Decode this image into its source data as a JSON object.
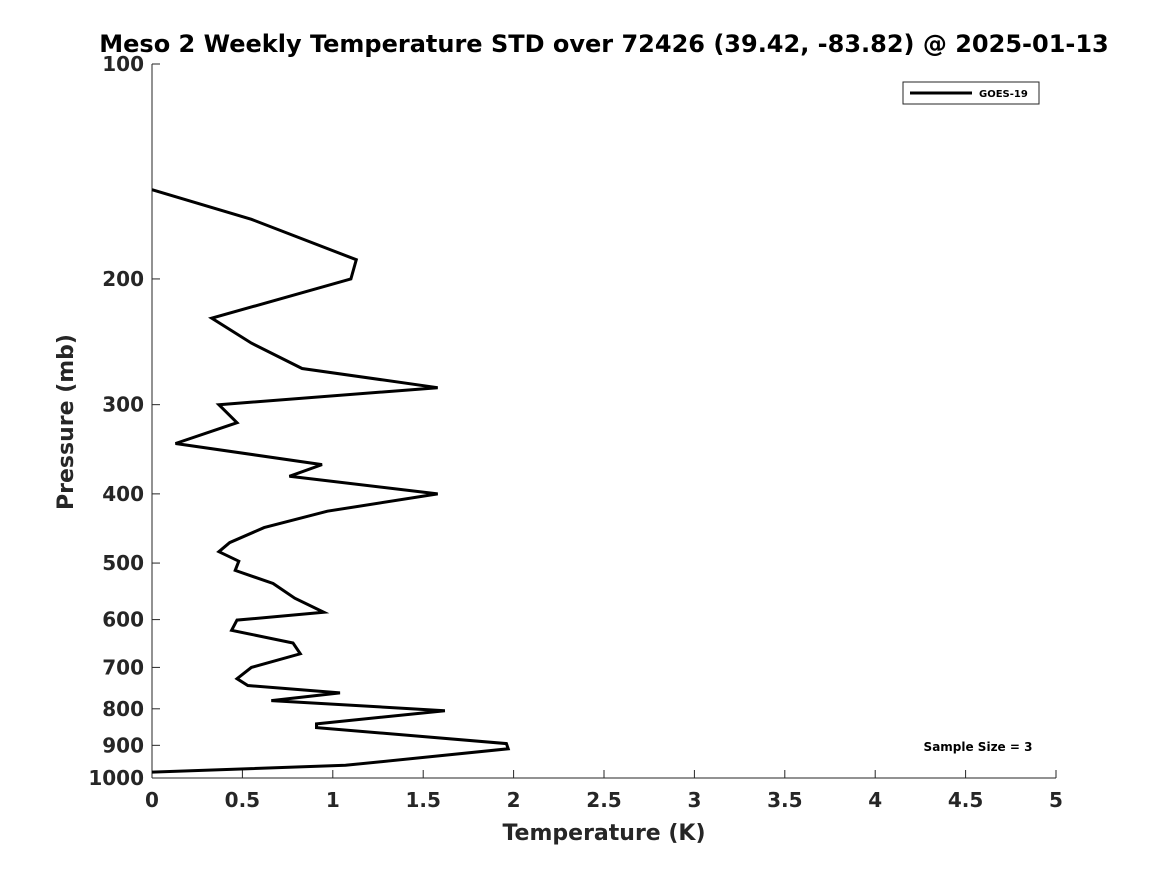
{
  "chart_data": {
    "type": "line",
    "title": "Meso 2 Weekly Temperature STD over 72426 (39.42, -83.82) @ 2025-01-13",
    "xlabel": "Temperature (K)",
    "ylabel": "Pressure (mb)",
    "xlim": [
      0,
      5
    ],
    "ylim": [
      1000,
      100
    ],
    "yscale": "log",
    "y_reversed": true,
    "grid": false,
    "legend_position": "top-right",
    "x_ticks": [
      0,
      0.5,
      1,
      1.5,
      2,
      2.5,
      3,
      3.5,
      4,
      4.5,
      5
    ],
    "x_tick_labels": [
      "0",
      "0.5",
      "1",
      "1.5",
      "2",
      "2.5",
      "3",
      "3.5",
      "4",
      "4.5",
      "5"
    ],
    "y_ticks": [
      100,
      200,
      300,
      400,
      500,
      600,
      700,
      800,
      900,
      1000
    ],
    "y_tick_labels": [
      "100",
      "200",
      "300",
      "400",
      "500",
      "600",
      "700",
      "800",
      "900",
      "1000"
    ],
    "annotation": "Sample Size = 3",
    "series": [
      {
        "name": "GOES-19",
        "color": "#000000",
        "points": [
          {
            "x": 0.0,
            "y": 150
          },
          {
            "x": 0.55,
            "y": 165
          },
          {
            "x": 1.13,
            "y": 188
          },
          {
            "x": 1.1,
            "y": 200
          },
          {
            "x": 0.33,
            "y": 227
          },
          {
            "x": 0.55,
            "y": 246
          },
          {
            "x": 0.83,
            "y": 267
          },
          {
            "x": 1.58,
            "y": 284
          },
          {
            "x": 0.37,
            "y": 300
          },
          {
            "x": 0.47,
            "y": 318
          },
          {
            "x": 0.13,
            "y": 340
          },
          {
            "x": 0.94,
            "y": 364
          },
          {
            "x": 0.76,
            "y": 378
          },
          {
            "x": 1.58,
            "y": 400
          },
          {
            "x": 0.97,
            "y": 423
          },
          {
            "x": 0.62,
            "y": 446
          },
          {
            "x": 0.43,
            "y": 468
          },
          {
            "x": 0.37,
            "y": 482
          },
          {
            "x": 0.48,
            "y": 497
          },
          {
            "x": 0.46,
            "y": 512
          },
          {
            "x": 0.67,
            "y": 534
          },
          {
            "x": 0.79,
            "y": 560
          },
          {
            "x": 0.95,
            "y": 586
          },
          {
            "x": 0.47,
            "y": 601
          },
          {
            "x": 0.44,
            "y": 621
          },
          {
            "x": 0.78,
            "y": 647
          },
          {
            "x": 0.82,
            "y": 670
          },
          {
            "x": 0.55,
            "y": 700
          },
          {
            "x": 0.47,
            "y": 726
          },
          {
            "x": 0.53,
            "y": 742
          },
          {
            "x": 1.04,
            "y": 760
          },
          {
            "x": 0.66,
            "y": 779
          },
          {
            "x": 1.62,
            "y": 805
          },
          {
            "x": 0.91,
            "y": 840
          },
          {
            "x": 0.91,
            "y": 850
          },
          {
            "x": 1.96,
            "y": 895
          },
          {
            "x": 1.97,
            "y": 910
          },
          {
            "x": 1.07,
            "y": 960
          },
          {
            "x": 0.0,
            "y": 981
          }
        ]
      }
    ]
  }
}
